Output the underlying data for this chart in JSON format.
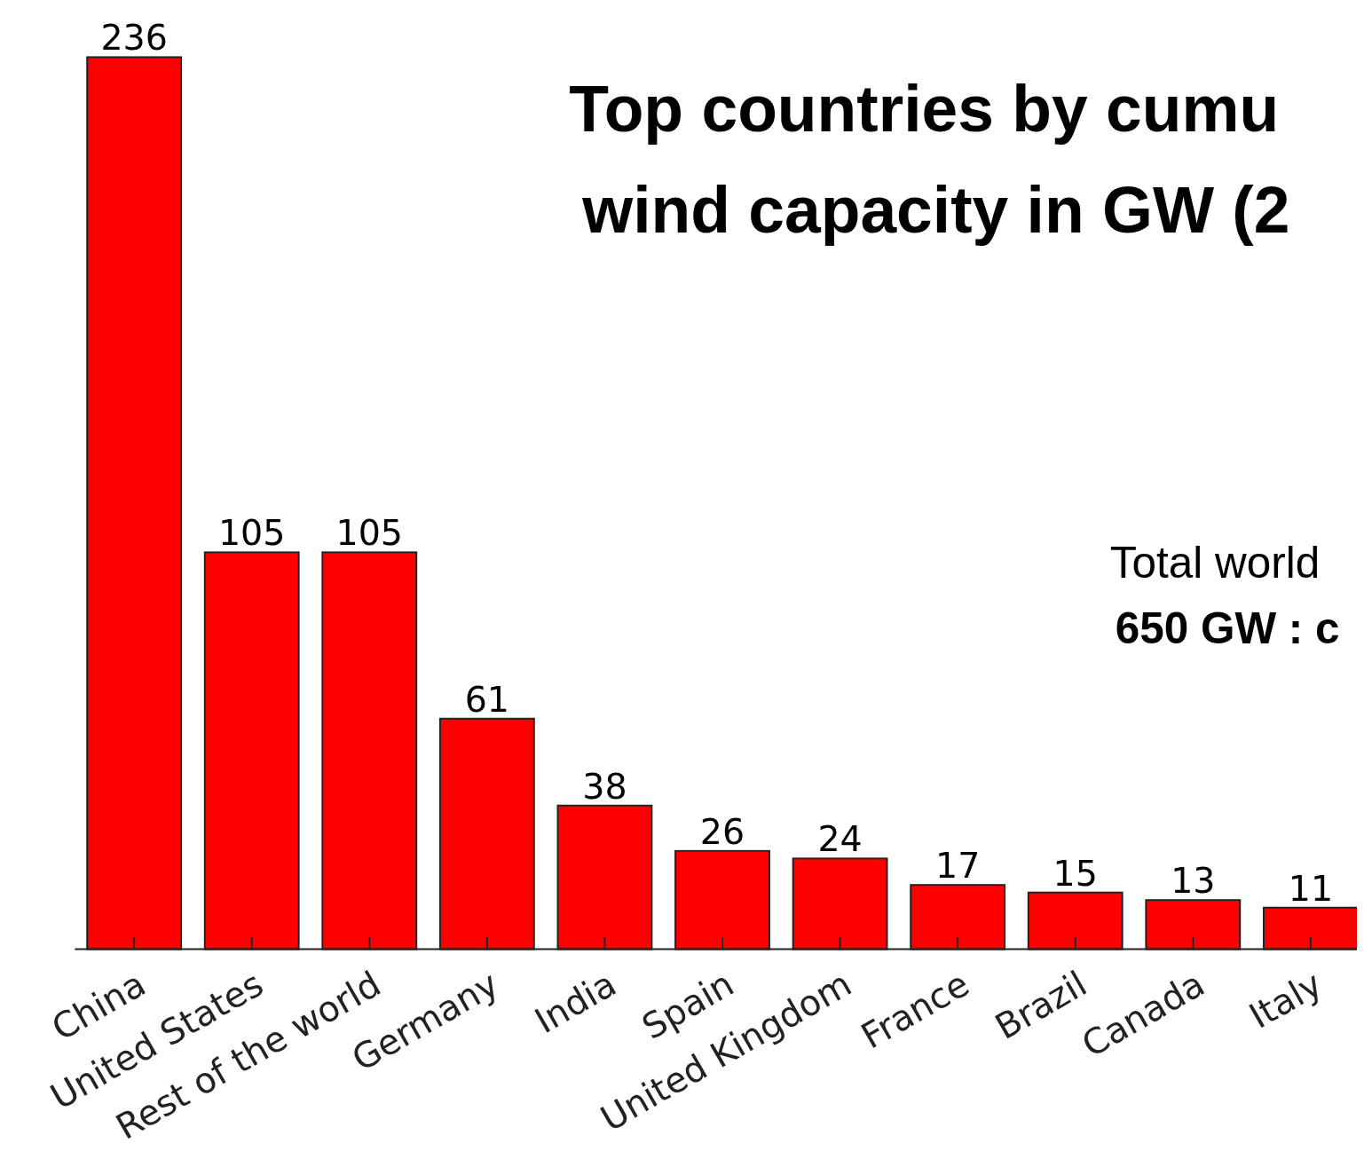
{
  "chart_data": {
    "type": "bar",
    "title": "Top countries by cumu\nwind capacity in GW (2",
    "categories": [
      "China",
      "United States",
      "Rest of the world",
      "Germany",
      "India",
      "Spain",
      "United Kingdom",
      "France",
      "Brazil",
      "Canada",
      "Italy"
    ],
    "values": [
      236,
      105,
      105,
      61,
      38,
      26,
      24,
      17,
      15,
      13,
      11
    ],
    "color": "#ff0000",
    "data_labels": true,
    "annotations": [
      "Total world",
      "650 GW : c"
    ]
  }
}
